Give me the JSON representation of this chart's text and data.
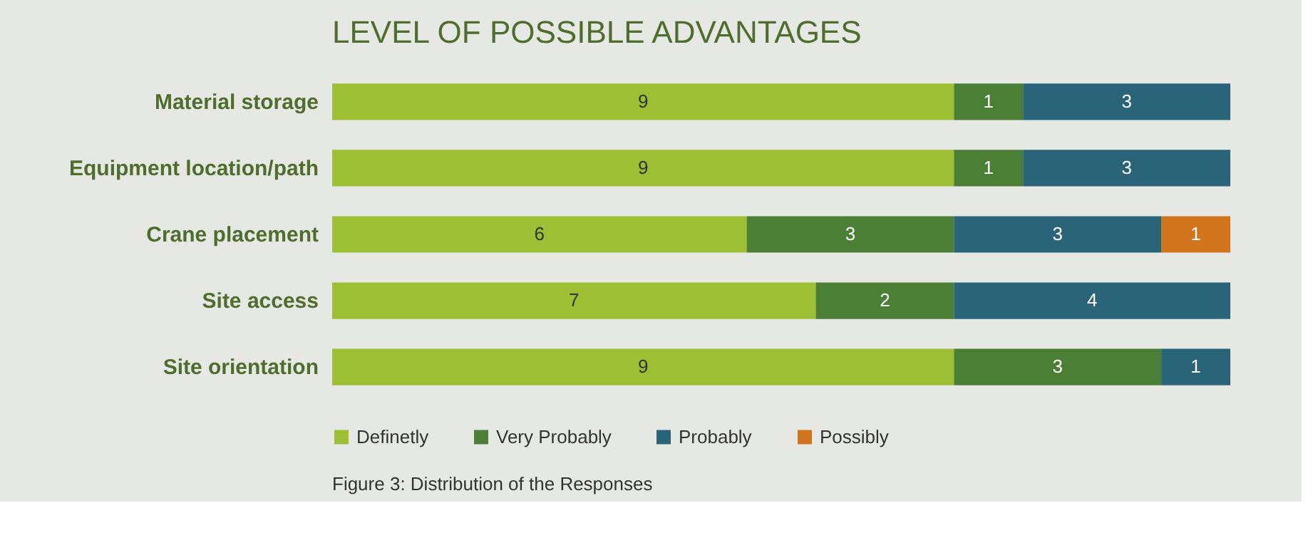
{
  "chart_data": {
    "type": "bar",
    "orientation": "horizontal",
    "stacked": true,
    "title": "LEVEL OF POSSIBLE ADVANTAGES",
    "categories": [
      "Material storage",
      "Equipment location/path",
      "Crane placement",
      "Site access",
      "Site orientation"
    ],
    "series": [
      {
        "name": "Definetly",
        "color": "#9dbf34",
        "values": [
          9,
          9,
          6,
          7,
          9
        ]
      },
      {
        "name": "Very Probably",
        "color": "#4a7f35",
        "values": [
          1,
          1,
          3,
          2,
          3
        ]
      },
      {
        "name": "Probably",
        "color": "#2a6478",
        "values": [
          3,
          3,
          3,
          4,
          1
        ]
      },
      {
        "name": "Possibly",
        "color": "#d2741c",
        "values": [
          null,
          null,
          1,
          null,
          null
        ]
      }
    ],
    "data_labels": true,
    "legend": "bottom",
    "tick_labels": "y",
    "annotations": [
      "Figure 3: Distribution of the Responses"
    ]
  }
}
